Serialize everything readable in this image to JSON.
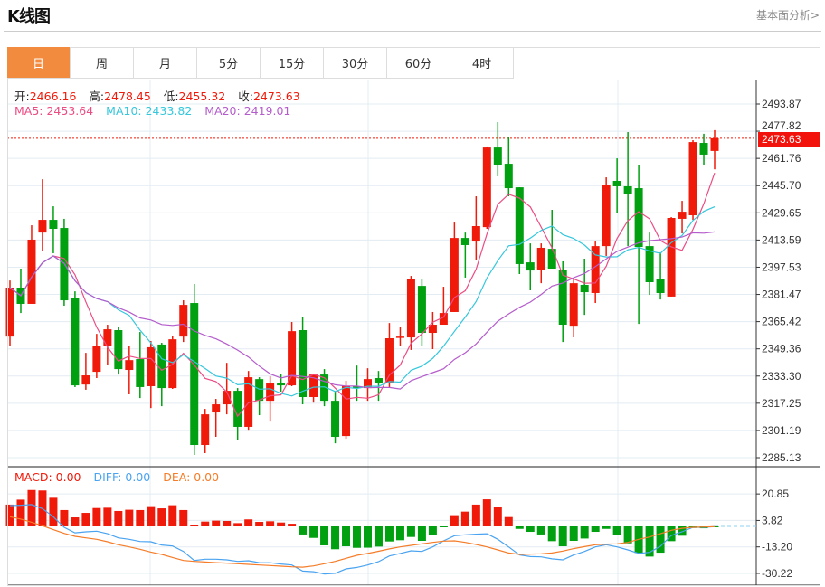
{
  "header": {
    "title": "K线图",
    "fundamental_link": "基本面分析>"
  },
  "tabs": [
    {
      "label": "日",
      "active": true
    },
    {
      "label": "周",
      "active": false
    },
    {
      "label": "月",
      "active": false
    },
    {
      "label": "5分",
      "active": false
    },
    {
      "label": "15分",
      "active": false
    },
    {
      "label": "30分",
      "active": false
    },
    {
      "label": "60分",
      "active": false
    },
    {
      "label": "4时",
      "active": false
    }
  ],
  "ohlc_info": {
    "open_label": "开:",
    "open": "2466.16",
    "high_label": "高:",
    "high": "2478.45",
    "low_label": "低:",
    "low": "2455.32",
    "close_label": "收:",
    "close": "2473.63"
  },
  "ma_info": {
    "ma5": "MA5: 2453.64",
    "ma10": "MA10: 2433.82",
    "ma20": "MA20: 2419.01"
  },
  "macd_info": {
    "macd": "MACD: 0.00",
    "diff": "DIFF: 0.00",
    "dea": "DEA: 0.00"
  },
  "current_price_tag": "2473.63",
  "colors": {
    "up": "#f01a0a",
    "down": "#00a010",
    "ma5": "#ec4c84",
    "ma10": "#35c7dc",
    "ma20": "#b55ccc",
    "diff": "#4aa3f0",
    "dea": "#f57c28",
    "active_tab": "#f38b3f"
  },
  "chart_data": {
    "type": "candlestick",
    "price_axis": {
      "ticks": [
        "2493.87",
        "2477.82",
        "2461.76",
        "2445.70",
        "2429.65",
        "2413.59",
        "2397.53",
        "2381.47",
        "2365.42",
        "2349.36",
        "2333.30",
        "2317.25",
        "2301.19",
        "2285.13"
      ],
      "range": [
        2285.13,
        2493.87
      ]
    },
    "candles": [
      [
        2356.6,
        2385.5,
        2389.7,
        2351.3
      ],
      [
        2385.5,
        2375.9,
        2396.7,
        2370.5
      ],
      [
        2375.9,
        2413.8,
        2422.3,
        2375.9
      ],
      [
        2418.0,
        2425.5,
        2449.5,
        2406.9
      ],
      [
        2425.5,
        2420.2,
        2433.5,
        2405.8
      ],
      [
        2420.7,
        2378.0,
        2426.1,
        2374.8
      ],
      [
        2379.1,
        2327.8,
        2383.3,
        2326.8
      ],
      [
        2328.3,
        2333.7,
        2347.0,
        2325.2
      ],
      [
        2335.8,
        2350.8,
        2358.2,
        2332.1
      ],
      [
        2350.8,
        2360.9,
        2363.6,
        2340.0
      ],
      [
        2360.4,
        2337.4,
        2362.0,
        2334.2
      ],
      [
        2336.9,
        2342.7,
        2351.3,
        2322.5
      ],
      [
        2343.3,
        2326.8,
        2359.3,
        2320.3
      ],
      [
        2327.3,
        2350.3,
        2354.0,
        2314.4
      ],
      [
        2351.9,
        2326.2,
        2352.9,
        2315.5
      ],
      [
        2326.2,
        2355.0,
        2357.2,
        2325.7
      ],
      [
        2356.6,
        2375.3,
        2378.0,
        2353.4
      ],
      [
        2376.4,
        2292.6,
        2387.6,
        2286.7
      ],
      [
        2292.6,
        2310.7,
        2313.9,
        2287.8
      ],
      [
        2311.8,
        2316.6,
        2319.8,
        2297.4
      ],
      [
        2316.6,
        2324.6,
        2341.1,
        2310.7
      ],
      [
        2324.6,
        2303.3,
        2326.2,
        2295.3
      ],
      [
        2303.3,
        2332.6,
        2336.3,
        2301.6
      ],
      [
        2331.5,
        2318.7,
        2332.6,
        2310.2
      ],
      [
        2318.7,
        2328.9,
        2333.1,
        2306.4
      ],
      [
        2329.4,
        2327.8,
        2334.7,
        2324.1
      ],
      [
        2327.8,
        2359.8,
        2365.2,
        2327.3
      ],
      [
        2360.4,
        2320.9,
        2368.4,
        2316.6
      ],
      [
        2320.9,
        2334.2,
        2334.7,
        2317.6
      ],
      [
        2334.2,
        2318.7,
        2337.4,
        2315.5
      ],
      [
        2318.7,
        2297.4,
        2324.1,
        2293.6
      ],
      [
        2297.9,
        2327.3,
        2330.5,
        2296.3
      ],
      [
        2327.3,
        2326.2,
        2339.5,
        2318.7
      ],
      [
        2326.2,
        2331.5,
        2337.9,
        2318.7
      ],
      [
        2332.1,
        2328.9,
        2336.3,
        2318.7
      ],
      [
        2329.4,
        2355.6,
        2364.6,
        2326.8
      ],
      [
        2356.1,
        2356.6,
        2362.0,
        2350.8
      ],
      [
        2356.1,
        2390.8,
        2392.4,
        2348.7
      ],
      [
        2386.5,
        2358.8,
        2390.8,
        2350.8
      ],
      [
        2358.8,
        2363.6,
        2371.1,
        2349.2
      ],
      [
        2363.6,
        2370.5,
        2386.0,
        2363.6
      ],
      [
        2371.1,
        2414.8,
        2423.9,
        2371.1
      ],
      [
        2414.8,
        2410.6,
        2418.0,
        2391.4
      ],
      [
        2412.7,
        2421.8,
        2439.4,
        2401.5
      ],
      [
        2421.2,
        2468.2,
        2468.8,
        2420.2
      ],
      [
        2468.2,
        2458.1,
        2483.2,
        2451.2
      ],
      [
        2458.6,
        2444.2,
        2474.1,
        2439.4
      ],
      [
        2444.7,
        2399.4,
        2444.7,
        2393.5
      ],
      [
        2400.4,
        2395.6,
        2411.6,
        2383.9
      ],
      [
        2396.1,
        2409.0,
        2411.6,
        2388.1
      ],
      [
        2408.4,
        2396.7,
        2431.4,
        2396.7
      ],
      [
        2396.1,
        2363.6,
        2401.0,
        2353.4
      ],
      [
        2363.0,
        2388.1,
        2390.8,
        2356.1
      ],
      [
        2387.1,
        2382.8,
        2402.6,
        2369.4
      ],
      [
        2382.3,
        2410.0,
        2412.7,
        2376.4
      ],
      [
        2410.0,
        2446.3,
        2450.6,
        2404.2
      ],
      [
        2448.5,
        2445.3,
        2461.8,
        2429.8
      ],
      [
        2445.3,
        2440.5,
        2477.3,
        2410.0
      ],
      [
        2444.2,
        2409.5,
        2458.1,
        2364.1
      ],
      [
        2410.0,
        2388.7,
        2418.0,
        2381.2
      ],
      [
        2390.8,
        2382.3,
        2406.3,
        2378.5
      ],
      [
        2380.2,
        2426.6,
        2427.1,
        2380.2
      ],
      [
        2426.1,
        2430.3,
        2436.7,
        2417.5
      ],
      [
        2428.2,
        2471.4,
        2472.5,
        2425.5
      ],
      [
        2470.9,
        2464.0,
        2476.3,
        2458.1
      ],
      [
        2466.16,
        2473.63,
        2478.45,
        2455.32
      ]
    ],
    "candle_fields": [
      "open",
      "close",
      "high",
      "low"
    ],
    "ma_periods": [
      5,
      10,
      20
    ],
    "macd_axis": {
      "ticks": [
        "20.85",
        "3.82",
        "-13.20",
        "-30.22"
      ],
      "range": [
        -30.22,
        20.85
      ]
    },
    "macd_hist": [
      14.0,
      17.2,
      23.4,
      23.1,
      18.4,
      10.5,
      5.8,
      8.7,
      11.8,
      12.0,
      9.9,
      10.7,
      10.5,
      13.0,
      11.6,
      13.6,
      10.5,
      0.8,
      3.1,
      3.7,
      3.5,
      2.1,
      4.5,
      2.9,
      3.3,
      2.5,
      1.7,
      -5.2,
      -7.4,
      -12.2,
      -14.7,
      -12.8,
      -13.8,
      -13.7,
      -13.0,
      -9.7,
      -8.9,
      -6.8,
      -9.3,
      -5.6,
      -0.4,
      7.2,
      9.5,
      14.0,
      17.4,
      12.4,
      6.0,
      -1.6,
      -3.5,
      -5.2,
      -9.5,
      -12.8,
      -9.3,
      -7.8,
      -3.5,
      -1.6,
      -5.4,
      -10.9,
      -17.1,
      -19.4,
      -16.9,
      -9.5,
      -6.0,
      -1.0,
      -1.2,
      -0.4
    ],
    "diff": [
      13.4,
      13.6,
      14.0,
      11.4,
      6.2,
      -0.6,
      -4.1,
      -3.5,
      -3.1,
      -4.7,
      -7.4,
      -8.3,
      -9.7,
      -9.9,
      -12.0,
      -12.6,
      -16.1,
      -21.9,
      -21.1,
      -21.1,
      -21.5,
      -22.5,
      -22.1,
      -23.3,
      -23.4,
      -24.2,
      -24.8,
      -28.7,
      -29.1,
      -30.6,
      -30.2,
      -27.3,
      -26.4,
      -24.8,
      -22.7,
      -19.0,
      -17.4,
      -15.7,
      -16.1,
      -13.2,
      -9.3,
      -6.0,
      -5.4,
      -5.0,
      -4.7,
      -8.3,
      -13.2,
      -18.4,
      -19.4,
      -19.6,
      -20.9,
      -21.5,
      -18.4,
      -16.1,
      -13.2,
      -11.8,
      -13.2,
      -15.1,
      -17.4,
      -16.7,
      -12.8,
      -5.8,
      -3.5,
      -0.6,
      -0.6,
      -0.2
    ],
    "dea": [
      6.2,
      4.7,
      2.7,
      0.4,
      -2.1,
      -4.5,
      -6.4,
      -7.4,
      -8.3,
      -9.9,
      -11.8,
      -13.2,
      -14.7,
      -16.5,
      -18.0,
      -20.0,
      -21.9,
      -22.5,
      -22.9,
      -23.3,
      -23.6,
      -24.0,
      -24.4,
      -24.8,
      -25.2,
      -25.6,
      -26.0,
      -26.2,
      -25.4,
      -24.0,
      -22.5,
      -20.5,
      -18.6,
      -17.4,
      -16.0,
      -14.5,
      -13.2,
      -12.2,
      -11.2,
      -10.3,
      -9.5,
      -9.3,
      -10.3,
      -11.6,
      -13.2,
      -15.1,
      -17.1,
      -18.0,
      -17.8,
      -17.6,
      -17.1,
      -15.9,
      -14.3,
      -13.0,
      -11.8,
      -11.4,
      -11.2,
      -10.3,
      -8.3,
      -6.8,
      -4.7,
      -2.5,
      -1.2,
      -0.6,
      -0.4,
      -0.2
    ]
  }
}
